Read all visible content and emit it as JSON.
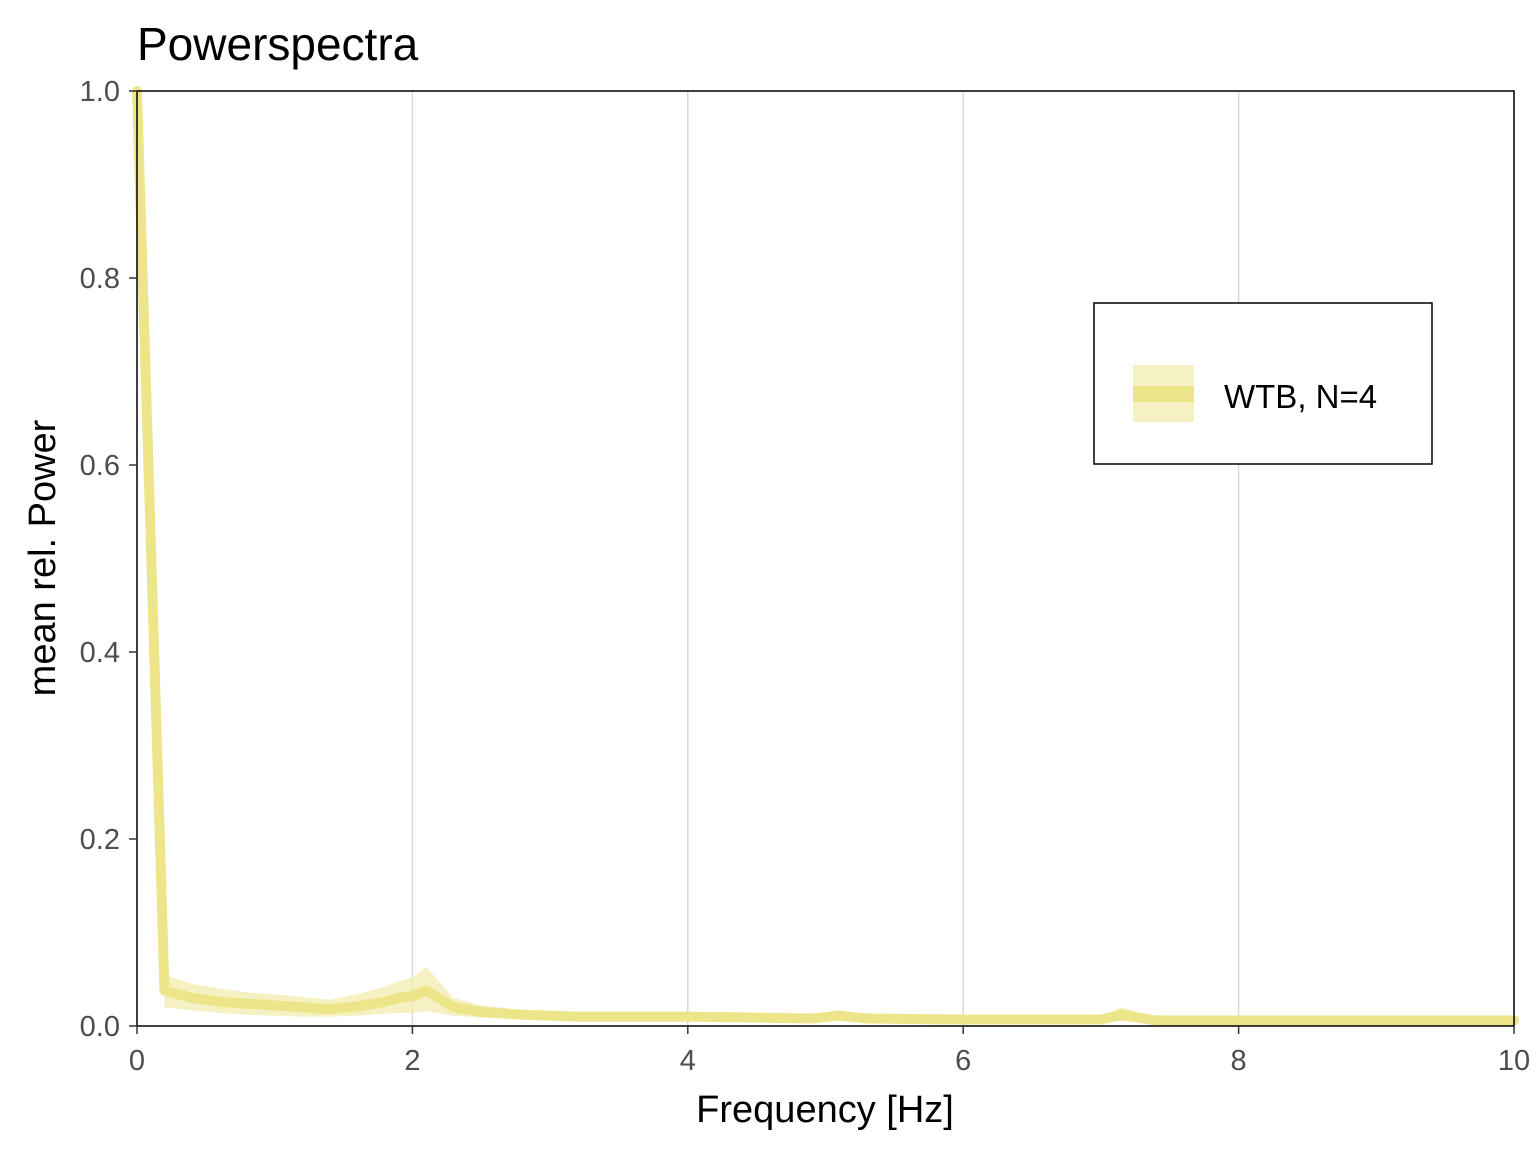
{
  "chart_data": {
    "type": "line",
    "title": "Powerspectra",
    "xlabel": "Frequency [Hz]",
    "ylabel": "mean rel. Power",
    "xlim": [
      0,
      10
    ],
    "ylim": [
      0,
      1
    ],
    "x_ticks": [
      "0",
      "2",
      "4",
      "6",
      "8",
      "10"
    ],
    "x_tick_values": [
      0,
      2,
      4,
      6,
      8,
      10
    ],
    "y_ticks": [
      "0.0",
      "0.2",
      "0.4",
      "0.6",
      "0.8",
      "1.0"
    ],
    "y_tick_values": [
      0,
      0.2,
      0.4,
      0.6,
      0.8,
      1.0
    ],
    "grid": "vertical-major",
    "legend_position": "top-right",
    "colors": {
      "line": "#EDE58A",
      "ribbon": "#F3ECAE",
      "grid": "#d9d9d9",
      "frame": "#000000"
    },
    "series": [
      {
        "name": "WTB, N=4",
        "x": [
          0,
          0.2,
          0.4,
          0.6,
          0.8,
          1.0,
          1.2,
          1.4,
          1.6,
          1.8,
          1.9,
          2.0,
          2.1,
          2.3,
          2.5,
          2.8,
          3.2,
          3.6,
          4.0,
          4.5,
          4.9,
          5.1,
          5.3,
          6.0,
          6.5,
          7.0,
          7.15,
          7.4,
          8.0,
          9.0,
          10.0
        ],
        "y": [
          1.0,
          0.038,
          0.03,
          0.026,
          0.024,
          0.022,
          0.02,
          0.018,
          0.021,
          0.026,
          0.03,
          0.032,
          0.038,
          0.02,
          0.015,
          0.012,
          0.01,
          0.01,
          0.01,
          0.009,
          0.008,
          0.011,
          0.008,
          0.007,
          0.007,
          0.007,
          0.012,
          0.006,
          0.006,
          0.006,
          0.006
        ],
        "lower": [
          1.0,
          0.02,
          0.017,
          0.014,
          0.012,
          0.011,
          0.01,
          0.01,
          0.011,
          0.013,
          0.014,
          0.014,
          0.016,
          0.011,
          0.009,
          0.007,
          0.006,
          0.006,
          0.006,
          0.005,
          0.005,
          0.006,
          0.005,
          0.004,
          0.004,
          0.004,
          0.005,
          0.003,
          0.003,
          0.003,
          0.003
        ],
        "upper": [
          1.0,
          0.055,
          0.045,
          0.04,
          0.036,
          0.034,
          0.031,
          0.028,
          0.034,
          0.042,
          0.048,
          0.052,
          0.063,
          0.03,
          0.022,
          0.017,
          0.014,
          0.014,
          0.014,
          0.013,
          0.012,
          0.017,
          0.012,
          0.01,
          0.01,
          0.011,
          0.02,
          0.009,
          0.009,
          0.009,
          0.009
        ]
      }
    ]
  }
}
